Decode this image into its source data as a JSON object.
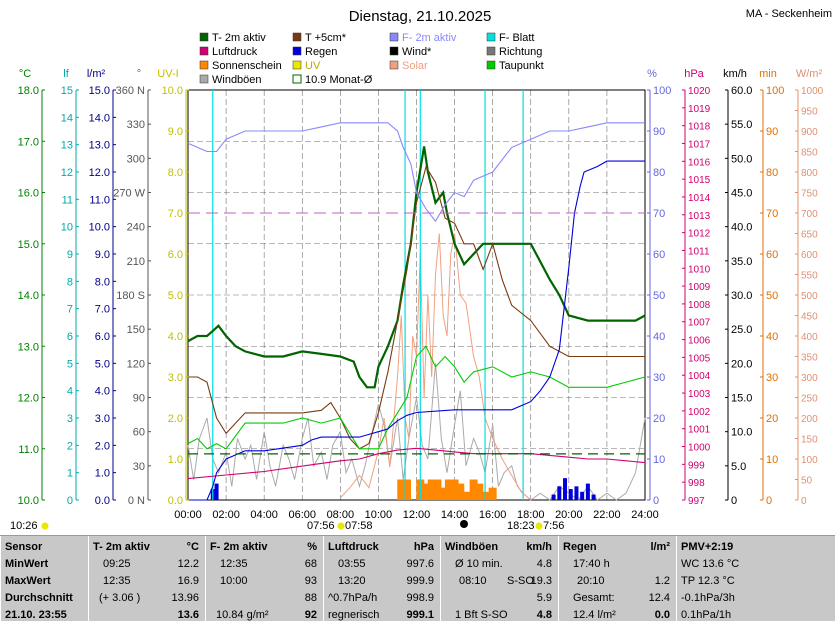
{
  "title": "Dienstag, 21.10.2025",
  "station": "MA - Seckenheim",
  "colors": {
    "t2m": "#006400",
    "t5cm": "#7a3a10",
    "f2m": "#8888ff",
    "fblatt": "#00e0e0",
    "luftdruck": "#d00070",
    "regen": "#0000dd",
    "wind": "#000000",
    "richtung": "#777777",
    "sonne": "#ff8800",
    "uv": "#e8e800",
    "solar": "#f0a080",
    "taupunkt": "#00cc00",
    "windboeen": "#aaaaaa",
    "monat": "#006400",
    "grid": "#000000",
    "grid_light": "#d0d0d0"
  },
  "legend": [
    {
      "label": "T- 2m aktiv",
      "color": "#006400",
      "style": "box"
    },
    {
      "label": "T +5cm*",
      "color": "#7a3a10",
      "style": "box"
    },
    {
      "label": "F- 2m aktiv",
      "color": "#8888ff",
      "style": "box"
    },
    {
      "label": "F- Blatt",
      "color": "#00e0e0",
      "style": "box"
    },
    {
      "label": "Luftdruck",
      "color": "#d00070",
      "style": "box"
    },
    {
      "label": "Regen",
      "color": "#0000dd",
      "style": "box"
    },
    {
      "label": "Wind*",
      "color": "#000000",
      "style": "box"
    },
    {
      "label": "Richtung",
      "color": "#777777",
      "style": "box"
    },
    {
      "label": "Sonnenschein",
      "color": "#ff8800",
      "style": "box"
    },
    {
      "label": "UV",
      "color": "#e8e800",
      "style": "box"
    },
    {
      "label": "Solar",
      "color": "#f0a080",
      "style": "box"
    },
    {
      "label": "Taupunkt",
      "color": "#00cc00",
      "style": "box"
    },
    {
      "label": "Windböen",
      "color": "#aaaaaa",
      "style": "box"
    },
    {
      "label": "10.9 Monat-Ø",
      "color": "#006400",
      "style": "outline"
    }
  ],
  "axes_units": {
    "temp": "°C",
    "leaf": "lf",
    "rain": "l/m²",
    "dir": "°",
    "uv": "UV-I",
    "hum": "%",
    "press": "hPa",
    "wind": "km/h",
    "sun": "min",
    "solar": "W/m²"
  },
  "chart_data": {
    "type": "line",
    "x_ticks": [
      "00:00",
      "02:00",
      "04:00",
      "06:00",
      "08:00",
      "10:00",
      "12:00",
      "14:00",
      "16:00",
      "18:00",
      "20:00",
      "22:00",
      "24:00"
    ],
    "axes": {
      "temp": {
        "min": 10.0,
        "max": 18.0,
        "ticks": [
          "10.0",
          "11.0",
          "12.0",
          "13.0",
          "14.0",
          "15.0",
          "16.0",
          "17.0",
          "18.0"
        ]
      },
      "leaf": {
        "min": 0,
        "max": 15,
        "ticks": [
          "0",
          "1",
          "2",
          "3",
          "4",
          "5",
          "6",
          "7",
          "8",
          "9",
          "10",
          "11",
          "12",
          "13",
          "14",
          "15"
        ]
      },
      "rain": {
        "min": 0.0,
        "max": 15.0,
        "ticks": [
          "0.0",
          "1.0",
          "2.0",
          "3.0",
          "4.0",
          "5.0",
          "6.0",
          "7.0",
          "8.0",
          "9.0",
          "10.0",
          "11.0",
          "12.0",
          "13.0",
          "14.0",
          "15.0"
        ]
      },
      "dir": {
        "ticks": [
          {
            "v": 0,
            "t": "0 N"
          },
          {
            "v": 30,
            "t": "30"
          },
          {
            "v": 60,
            "t": "60"
          },
          {
            "v": 90,
            "t": "90"
          },
          {
            "v": 120,
            "t": "120"
          },
          {
            "v": 150,
            "t": "150"
          },
          {
            "v": 180,
            "t": "180 S"
          },
          {
            "v": 210,
            "t": "210"
          },
          {
            "v": 240,
            "t": "240"
          },
          {
            "v": 270,
            "t": "270 W"
          },
          {
            "v": 300,
            "t": "300"
          },
          {
            "v": 330,
            "t": "330"
          },
          {
            "v": 360,
            "t": "360 N"
          }
        ]
      },
      "uv": {
        "min": 0,
        "max": 10,
        "ticks": [
          "0.0",
          "1.0",
          "2.0",
          "3.0",
          "4.0",
          "5.0",
          "6.0",
          "7.0",
          "8.0",
          "9.0",
          "10.0"
        ]
      },
      "hum": {
        "min": 0,
        "max": 100,
        "ticks": [
          "0",
          "10",
          "20",
          "30",
          "40",
          "50",
          "60",
          "70",
          "80",
          "90",
          "100"
        ]
      },
      "press": {
        "min": 997,
        "max": 1020,
        "ticks": [
          "997",
          "998",
          "999",
          "1000",
          "1001",
          "1002",
          "1003",
          "1004",
          "1005",
          "1006",
          "1007",
          "1008",
          "1009",
          "1010",
          "1011",
          "1012",
          "1013",
          "1014",
          "1015",
          "1016",
          "1017",
          "1018",
          "1019",
          "1020"
        ]
      },
      "wind": {
        "min": 0,
        "max": 60,
        "ticks": [
          "0",
          "5.0",
          "10.0",
          "15.0",
          "20.0",
          "25.0",
          "30.0",
          "35.0",
          "40.0",
          "45.0",
          "50.0",
          "55.0",
          "60.0"
        ]
      },
      "sun": {
        "min": 0,
        "max": 100,
        "ticks": [
          "0",
          "10",
          "20",
          "30",
          "40",
          "50",
          "60",
          "70",
          "80",
          "90",
          "100"
        ]
      },
      "solar": {
        "min": 0,
        "max": 1000,
        "ticks": [
          "0",
          "50",
          "100",
          "150",
          "200",
          "250",
          "300",
          "350",
          "400",
          "450",
          "500",
          "550",
          "600",
          "650",
          "700",
          "750",
          "800",
          "850",
          "900",
          "950",
          "1000"
        ]
      }
    },
    "series": [
      {
        "key": "t2m",
        "name": "T- 2m aktiv",
        "axis": "temp",
        "x": [
          0,
          0.5,
          1,
          1.3,
          1.6,
          2,
          2.5,
          3,
          4,
          5,
          6,
          7,
          8,
          8.7,
          9,
          9.4,
          9.8,
          10,
          10.5,
          11,
          11.3,
          11.7,
          12,
          12.4,
          12.6,
          13,
          13.4,
          13.6,
          14,
          14.5,
          15,
          15.5,
          16,
          17,
          18,
          19,
          19.5,
          20,
          21,
          22,
          23,
          23.5,
          24
        ],
        "y": [
          13.1,
          13.2,
          13.2,
          13.3,
          13.4,
          13.2,
          13.0,
          12.9,
          12.8,
          12.8,
          12.9,
          12.85,
          12.8,
          12.7,
          12.4,
          12.2,
          12.2,
          12.6,
          13.0,
          13.5,
          14.2,
          15.0,
          16.0,
          16.9,
          16.4,
          15.8,
          16.0,
          15.6,
          15.0,
          14.6,
          14.8,
          15.0,
          15.0,
          15.0,
          15.0,
          14.3,
          14.0,
          13.6,
          13.5,
          13.5,
          13.5,
          13.5,
          13.6
        ]
      },
      {
        "key": "t5cm",
        "name": "T +5cm*",
        "axis": "temp",
        "x": [
          0,
          0.5,
          1,
          1.5,
          2,
          3,
          4,
          5,
          6,
          7,
          7.5,
          8,
          8.5,
          9,
          9.5,
          10,
          10.5,
          11,
          11.5,
          12,
          12.5,
          13,
          13.5,
          14,
          14.5,
          15,
          15.5,
          16,
          16.5,
          17,
          18,
          19,
          20,
          21,
          22,
          23,
          24
        ],
        "y": [
          12.4,
          12.4,
          12.3,
          11.6,
          11.3,
          11.7,
          11.7,
          11.7,
          11.7,
          11.75,
          11.9,
          11.6,
          11.2,
          11.0,
          11.1,
          11.7,
          12.5,
          13.5,
          14.5,
          15.8,
          16.5,
          16.2,
          15.5,
          15.4,
          15.0,
          15.0,
          14.5,
          15.0,
          14.3,
          13.8,
          13.5,
          13.0,
          12.8,
          12.8,
          12.8,
          12.8,
          12.8
        ]
      },
      {
        "key": "f2m",
        "name": "F- 2m aktiv",
        "axis": "hum",
        "x": [
          0,
          0.5,
          1,
          1.5,
          2,
          3,
          4,
          5,
          6,
          7,
          8,
          9,
          10,
          10.5,
          11,
          11.3,
          11.7,
          12,
          12.5,
          13,
          13.5,
          14,
          14.5,
          15,
          16,
          17,
          18,
          19,
          20,
          21,
          22,
          23,
          24
        ],
        "y": [
          87,
          86,
          85,
          85,
          88,
          90,
          90,
          90,
          90,
          91,
          92,
          92,
          92,
          92,
          90,
          86,
          82,
          75,
          71,
          68,
          72,
          75,
          74,
          78,
          80,
          86,
          88,
          90,
          90,
          91,
          92,
          92,
          92
        ]
      },
      {
        "key": "taupunkt",
        "name": "Taupunkt",
        "axis": "temp",
        "x": [
          0,
          0.5,
          1,
          1.5,
          2,
          3,
          4,
          5,
          6,
          7,
          8,
          9,
          10,
          10.5,
          11,
          11.5,
          12,
          12.5,
          13,
          13.5,
          14,
          14.5,
          15,
          16,
          17,
          18,
          19,
          20,
          21,
          22,
          23,
          24
        ],
        "y": [
          11.1,
          11.2,
          11.0,
          11.1,
          11.0,
          11.5,
          11.5,
          11.5,
          11.6,
          11.5,
          11.6,
          11.0,
          11.0,
          11.4,
          11.7,
          12.0,
          12.8,
          13.0,
          12.6,
          12.8,
          12.6,
          12.3,
          12.5,
          12.6,
          12.4,
          12.5,
          12.4,
          12.2,
          12.2,
          12.2,
          12.3,
          12.4
        ]
      },
      {
        "key": "luftdruck",
        "name": "Luftdruck",
        "axis": "press",
        "x": [
          0,
          2,
          4,
          6,
          8,
          9,
          10,
          11,
          12,
          13,
          14,
          15,
          16,
          17,
          18,
          19,
          20,
          21,
          22,
          23,
          24
        ],
        "y": [
          998.2,
          998.4,
          998.6,
          998.9,
          999.2,
          999.3,
          999.6,
          999.8,
          999.9,
          999.8,
          999.7,
          999.6,
          999.6,
          999.6,
          999.6,
          999.5,
          999.4,
          999.3,
          999.3,
          999.2,
          999.1
        ]
      },
      {
        "key": "regen",
        "name": "Regen",
        "axis": "rain",
        "x": [
          0,
          1,
          1.3,
          1.5,
          2,
          3,
          4,
          6,
          6.5,
          7,
          9,
          9.5,
          10,
          10.5,
          11,
          11.5,
          12,
          14,
          16,
          17,
          18,
          18.5,
          19,
          19.5,
          20,
          20.3,
          20.6,
          20.8,
          21.5,
          22,
          24
        ],
        "y": [
          0.0,
          0.0,
          0.5,
          1.0,
          1.5,
          1.8,
          1.8,
          2.0,
          2.2,
          2.3,
          2.3,
          2.4,
          2.5,
          2.6,
          2.9,
          3.1,
          3.2,
          3.3,
          3.3,
          3.3,
          3.6,
          4.0,
          4.5,
          5.5,
          8.5,
          10.5,
          11.5,
          12.0,
          12.2,
          12.4,
          12.4
        ]
      },
      {
        "key": "monat",
        "name": "10.9 Monat-Ø",
        "axis": "temp",
        "dash": "10,6",
        "x": [
          0,
          24
        ],
        "y": [
          10.9,
          10.9
        ]
      },
      {
        "key": "hum_ref",
        "name": "",
        "axis": "hum",
        "dash": "12,6",
        "color": "#c060c0",
        "x": [
          0,
          24
        ],
        "y": [
          70,
          70
        ]
      }
    ],
    "bars": {
      "sonne": {
        "axis": "sun",
        "x": [
          11.2,
          11.5,
          12.2,
          12.5,
          12.8,
          13.1,
          13.4,
          13.7,
          14.0,
          14.3,
          14.6,
          15.0,
          15.3,
          15.6,
          16.0
        ],
        "values": [
          5,
          5,
          5,
          4,
          5,
          5,
          3,
          5,
          5,
          4,
          2,
          5,
          4,
          2,
          3
        ]
      },
      "regen_bars": {
        "axis": "rain",
        "x": [
          1.3,
          1.5,
          19.2,
          19.5,
          19.8,
          20.1,
          20.4,
          20.7,
          21.0,
          21.3
        ],
        "values": [
          0.4,
          0.6,
          0.2,
          0.5,
          0.8,
          0.4,
          0.5,
          0.3,
          0.6,
          0.2
        ]
      }
    },
    "windboeen": {
      "axis": "wind",
      "x": [
        0,
        0.3,
        0.6,
        1,
        1.3,
        1.6,
        2,
        2.3,
        2.6,
        3,
        3.3,
        3.6,
        4,
        4.3,
        4.6,
        5,
        5.3,
        5.6,
        6,
        6.3,
        6.6,
        7,
        7.3,
        7.6,
        8,
        8.3,
        8.6,
        9,
        9.3,
        9.6,
        10,
        10.3,
        10.6,
        11,
        11.3,
        11.6,
        12,
        12.3,
        12.6,
        13,
        13.3,
        13.6,
        14,
        14.3,
        14.6,
        15,
        15.3,
        15.6,
        16,
        16.3,
        16.6,
        17,
        17.3,
        17.6,
        18,
        18.5,
        19,
        19.5,
        20,
        20.5,
        21,
        21.5,
        22,
        22.5,
        23,
        23.5,
        24
      ],
      "y": [
        8,
        3,
        9,
        12,
        6,
        4,
        7,
        2,
        9,
        6,
        8,
        3,
        10,
        5,
        2,
        8,
        6,
        3,
        9,
        12,
        5,
        7,
        3,
        8,
        10,
        4,
        6,
        2,
        5,
        9,
        14,
        11,
        5,
        12,
        3,
        9,
        15,
        8,
        6,
        20,
        9,
        4,
        11,
        16,
        5,
        9,
        7,
        4,
        11,
        2,
        4,
        5,
        2,
        1,
        0,
        1,
        0,
        2,
        1,
        0,
        2,
        0,
        1,
        0,
        1,
        4,
        12
      ]
    },
    "solar": {
      "axis": "solar",
      "x": [
        8,
        8.5,
        9,
        9.5,
        10,
        10.3,
        10.6,
        11,
        11.2,
        11.4,
        11.6,
        11.8,
        12,
        12.2,
        12.4,
        12.6,
        12.8,
        13,
        13.2,
        13.4,
        13.6,
        13.8,
        14,
        14.3,
        14.6,
        15,
        15.3,
        15.6,
        16,
        16.5,
        17,
        17.5,
        18
      ],
      "y": [
        5,
        30,
        60,
        30,
        120,
        200,
        80,
        300,
        450,
        200,
        150,
        400,
        350,
        600,
        250,
        500,
        300,
        550,
        650,
        450,
        400,
        600,
        650,
        500,
        480,
        350,
        300,
        200,
        150,
        100,
        60,
        20,
        0
      ]
    },
    "fblatt_spikes_x": [
      1.3,
      11.4,
      12.2,
      15.6,
      17.6
    ],
    "sun_events": [
      {
        "label": "07:56",
        "time": 7.93
      },
      {
        "label": "07:58",
        "time": 7.97
      }
    ],
    "axis_footer": {
      "left": "10:26",
      "right": "18:23",
      "right2": "7:56"
    }
  },
  "stats": {
    "sensor": {
      "head": "Sensor",
      "rows": [
        "MinWert",
        "MaxWert",
        "Durchschnitt",
        "21.10. 23:55"
      ]
    },
    "t2m": {
      "head": "T- 2m aktiv",
      "unit": "°C",
      "rows": [
        {
          "a": "09:25",
          "b": "12.2"
        },
        {
          "a": "12:35",
          "b": "16.9"
        },
        {
          "a": "(+ 3.06 )",
          "b": "13.96"
        },
        {
          "a": "",
          "b": "13.6"
        }
      ]
    },
    "f2m": {
      "head": "F- 2m aktiv",
      "unit": "%",
      "rows": [
        {
          "a": "12:35",
          "b": "68"
        },
        {
          "a": "10:00",
          "b": "93"
        },
        {
          "a": "",
          "b": "88"
        },
        {
          "a": "10.84 g/m²",
          "b": "92"
        }
      ]
    },
    "druck": {
      "head": "Luftdruck",
      "unit": "hPa",
      "rows": [
        {
          "a": "03:55",
          "b": "997.6"
        },
        {
          "a": "13:20",
          "b": "999.9"
        },
        {
          "a": "^0.7hPa/h",
          "b": "998.9"
        },
        {
          "a": "regnerisch",
          "b": "999.1"
        }
      ]
    },
    "wind": {
      "head": "Windböen",
      "unit": "km/h",
      "rows": [
        {
          "a": "Ø 10 min.",
          "b": "4.8"
        },
        {
          "a": "08:10",
          "m": "S-SO",
          "b": "19.3"
        },
        {
          "a": "",
          "b": "5.9"
        },
        {
          "a": "1 Bft S-SO",
          "b": "4.8"
        }
      ]
    },
    "regen": {
      "head": "Regen",
      "unit": "l/m²",
      "rows": [
        {
          "a": "17:40 h",
          "b": ""
        },
        {
          "a": "20:10",
          "b": "1.2"
        },
        {
          "a": "Gesamt:",
          "b": "12.4"
        },
        {
          "a": "12.4 l/m²",
          "b": "0.0"
        }
      ]
    },
    "pmv": {
      "head": "PMV+2:19",
      "rows": [
        "WC 13.6 °C",
        "TP 12.3 °C",
        "-0.1hPa/3h",
        "0.1hPa/1h"
      ]
    }
  }
}
